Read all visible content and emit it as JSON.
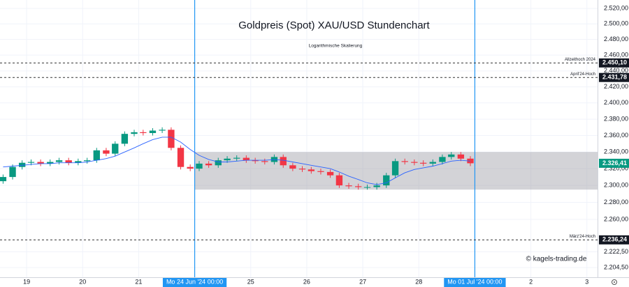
{
  "chart_data": {
    "type": "candlestick",
    "title": "Goldpreis (Spot) XAU/USD Stundenchart",
    "subtitle": "Logarithmische Skalierung",
    "watermark": "© kagels-trading.de",
    "log_scale": true,
    "grid": true,
    "up_color": "#089981",
    "down_color": "#f23645",
    "ma_color": "#2962ff",
    "zone_color": "#9e9ea6",
    "marker_color": "#2196f3",
    "ylim": [
      2193.5,
      2531
    ],
    "yticks": [
      {
        "value": 2520,
        "label": "2.520,00"
      },
      {
        "value": 2500,
        "label": "2.500,00"
      },
      {
        "value": 2480,
        "label": "2.480,00"
      },
      {
        "value": 2460,
        "label": "2.460,00"
      },
      {
        "value": 2440,
        "label": "2.440,00"
      },
      {
        "value": 2420,
        "label": "2.420,00"
      },
      {
        "value": 2400,
        "label": "2.400,00"
      },
      {
        "value": 2380,
        "label": "2.380,00"
      },
      {
        "value": 2360,
        "label": "2.360,00"
      },
      {
        "value": 2340,
        "label": "2.340,00"
      },
      {
        "value": 2320,
        "label": "2.320,00"
      },
      {
        "value": 2300,
        "label": "2.300,00"
      },
      {
        "value": 2280,
        "label": "2.280,00"
      },
      {
        "value": 2260,
        "label": "2.260,00"
      },
      {
        "value": 2222.5,
        "label": "2.222,50"
      },
      {
        "value": 2204.5,
        "label": "2.204,50"
      }
    ],
    "xlim": [
      -0.475,
      10.19
    ],
    "xticks": [
      {
        "value": 0,
        "label": "19"
      },
      {
        "value": 1,
        "label": "20"
      },
      {
        "value": 2,
        "label": "21"
      },
      {
        "value": 3,
        "label": "Mo 24 Jun '24   00:00",
        "highlight": true
      },
      {
        "value": 4,
        "label": "25"
      },
      {
        "value": 5,
        "label": "26"
      },
      {
        "value": 6,
        "label": "27"
      },
      {
        "value": 7,
        "label": "28"
      },
      {
        "value": 8,
        "label": "Mo 01 Jul '24   00:00",
        "highlight": true
      },
      {
        "value": 9,
        "label": "2"
      },
      {
        "value": 10,
        "label": "3"
      }
    ],
    "x": [
      -0.42,
      -0.25,
      -0.08,
      0.08,
      0.25,
      0.42,
      0.58,
      0.75,
      0.92,
      1.08,
      1.25,
      1.42,
      1.58,
      1.75,
      1.92,
      2.08,
      2.25,
      2.42,
      2.58,
      2.75,
      2.92,
      3.08,
      3.25,
      3.42,
      3.58,
      3.75,
      3.92,
      4.08,
      4.25,
      4.42,
      4.58,
      4.75,
      4.92,
      5.08,
      5.25,
      5.42,
      5.58,
      5.75,
      5.92,
      6.08,
      6.25,
      6.42,
      6.58,
      6.75,
      6.92,
      7.08,
      7.25,
      7.42,
      7.58,
      7.75,
      7.92
    ],
    "open": [
      2305,
      2310,
      2322,
      2327,
      2328,
      2326,
      2328,
      2330,
      2327,
      2329,
      2330,
      2342,
      2338,
      2350,
      2362,
      2364,
      2363,
      2366,
      2367,
      2345,
      2322,
      2320,
      2326,
      2324,
      2330,
      2332,
      2333,
      2330,
      2329,
      2328,
      2334,
      2324,
      2320,
      2319,
      2317,
      2316,
      2312,
      2300,
      2299,
      2298,
      2298,
      2300,
      2312,
      2329,
      2328,
      2327,
      2326,
      2328,
      2334,
      2337,
      2332
    ],
    "high": [
      2313,
      2325,
      2330,
      2331,
      2331,
      2331,
      2333,
      2333,
      2332,
      2333,
      2345,
      2345,
      2353,
      2365,
      2367,
      2367,
      2369,
      2370,
      2370,
      2348,
      2325,
      2329,
      2329,
      2333,
      2335,
      2336,
      2336,
      2333,
      2332,
      2337,
      2337,
      2327,
      2323,
      2322,
      2320,
      2319,
      2315,
      2303,
      2302,
      2301,
      2303,
      2315,
      2332,
      2332,
      2331,
      2330,
      2331,
      2337,
      2340,
      2340,
      2335
    ],
    "low": [
      2302,
      2307,
      2319,
      2324,
      2323,
      2323,
      2325,
      2324,
      2324,
      2326,
      2327,
      2335,
      2335,
      2347,
      2359,
      2360,
      2360,
      2363,
      2342,
      2319,
      2317,
      2317,
      2321,
      2321,
      2327,
      2329,
      2327,
      2326,
      2325,
      2325,
      2321,
      2317,
      2316,
      2314,
      2313,
      2309,
      2297,
      2296,
      2295,
      2295,
      2295,
      2297,
      2309,
      2325,
      2324,
      2323,
      2323,
      2325,
      2331,
      2329,
      2323
    ],
    "close": [
      2310,
      2322,
      2327,
      2328,
      2326,
      2328,
      2330,
      2327,
      2329,
      2330,
      2342,
      2338,
      2350,
      2362,
      2364,
      2363,
      2366,
      2367,
      2345,
      2322,
      2320,
      2326,
      2324,
      2330,
      2332,
      2333,
      2330,
      2329,
      2328,
      2334,
      2324,
      2320,
      2319,
      2317,
      2316,
      2312,
      2300,
      2299,
      2298,
      2298,
      2300,
      2312,
      2329,
      2328,
      2327,
      2326,
      2328,
      2334,
      2337,
      2332,
      2326.41
    ],
    "moving_average": [
      2322,
      2323,
      2324,
      2325,
      2326,
      2326,
      2327,
      2327,
      2327,
      2328,
      2330,
      2332,
      2335,
      2340,
      2345,
      2350,
      2355,
      2358,
      2358,
      2352,
      2343,
      2336,
      2331,
      2328,
      2328,
      2329,
      2330,
      2330,
      2330,
      2331,
      2330,
      2328,
      2326,
      2324,
      2322,
      2320,
      2316,
      2311,
      2307,
      2303,
      2301,
      2303,
      2309,
      2315,
      2319,
      2321,
      2323,
      2326,
      2329,
      2330,
      2329
    ],
    "last_label": "2.326,41",
    "zone": {
      "low": 2295,
      "high": 2340,
      "x": [
        3,
        10.19
      ]
    },
    "levels": [
      {
        "value": 2450.1,
        "label": "2.450,10",
        "text": "Allzeithoch 2024"
      },
      {
        "value": 2431.78,
        "label": "2.431,78",
        "text": "April'24-Hoch"
      },
      {
        "value": 2236.24,
        "label": "2.236,24",
        "text": "März'24-Hoch"
      }
    ]
  }
}
